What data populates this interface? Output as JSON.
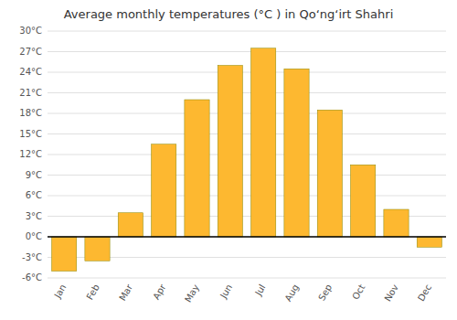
{
  "chart_data": {
    "type": "bar",
    "title": "Average monthly temperatures (°C ) in Qoʻngʻirt Shahri",
    "categories": [
      "Jan",
      "Feb",
      "Mar",
      "Apr",
      "May",
      "Jun",
      "Jul",
      "Aug",
      "Sep",
      "Oct",
      "Nov",
      "Dec"
    ],
    "values": [
      -5,
      -3.5,
      3.5,
      13.5,
      20,
      25,
      27.5,
      24.5,
      18.5,
      10.5,
      4,
      -1.5
    ],
    "color": "#FDB830",
    "ylim": [
      -6,
      30
    ],
    "yticks": [
      {
        "value": -6,
        "label": "-6°C"
      },
      {
        "value": -3,
        "label": "-3°C"
      },
      {
        "value": 0,
        "label": "0°C"
      },
      {
        "value": 3,
        "label": "3°C"
      },
      {
        "value": 6,
        "label": "6°C"
      },
      {
        "value": 9,
        "label": "9°C"
      },
      {
        "value": 12,
        "label": "12°C"
      },
      {
        "value": 15,
        "label": "15°C"
      },
      {
        "value": 18,
        "label": "18°C"
      },
      {
        "value": 21,
        "label": "21°C"
      },
      {
        "value": 24,
        "label": "24°C"
      },
      {
        "value": 27,
        "label": "27°C"
      },
      {
        "value": 30,
        "label": "30°C"
      }
    ],
    "grid": true
  }
}
